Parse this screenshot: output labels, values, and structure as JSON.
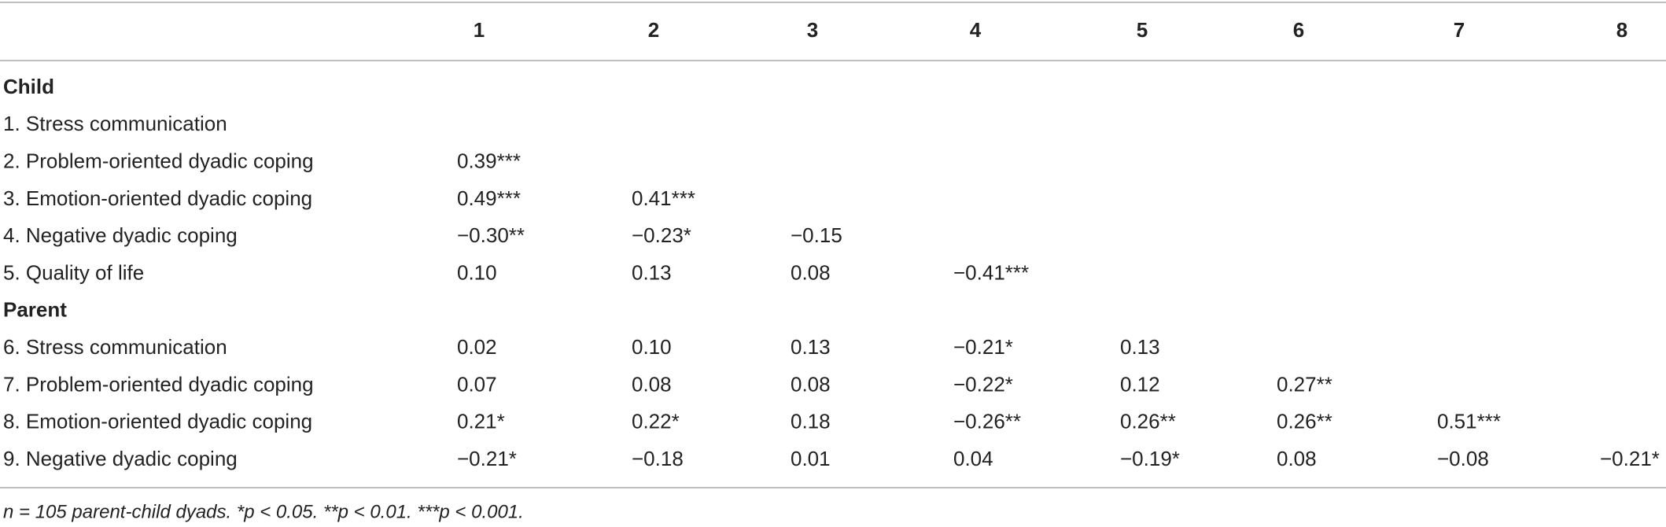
{
  "table": {
    "columns": [
      "1",
      "2",
      "3",
      "4",
      "5",
      "6",
      "7",
      "8"
    ],
    "sections": [
      {
        "title": "Child",
        "rows": [
          {
            "label": "1. Stress communication",
            "cells": []
          },
          {
            "label": "2. Problem-oriented dyadic coping",
            "cells": [
              "0.39***"
            ]
          },
          {
            "label": "3. Emotion-oriented dyadic coping",
            "cells": [
              "0.49***",
              "0.41***"
            ]
          },
          {
            "label": "4. Negative dyadic coping",
            "cells": [
              "−0.30**",
              "−0.23*",
              "−0.15"
            ]
          },
          {
            "label": "5. Quality of life",
            "cells": [
              "0.10",
              "0.13",
              "0.08",
              "−0.41***"
            ]
          }
        ]
      },
      {
        "title": "Parent",
        "rows": [
          {
            "label": "6. Stress communication",
            "cells": [
              "0.02",
              "0.10",
              "0.13",
              "−0.21*",
              "0.13"
            ]
          },
          {
            "label": "7. Problem-oriented dyadic coping",
            "cells": [
              "0.07",
              "0.08",
              "0.08",
              "−0.22*",
              "0.12",
              "0.27**"
            ]
          },
          {
            "label": "8. Emotion-oriented dyadic coping",
            "cells": [
              "0.21*",
              "0.22*",
              "0.18",
              "−0.26**",
              "0.26**",
              "0.26**",
              "0.51***"
            ]
          },
          {
            "label": "9. Negative dyadic coping",
            "cells": [
              "−0.21*",
              "−0.18",
              "0.01",
              "0.04",
              "−0.19*",
              "0.08",
              "−0.08",
              "−0.21*"
            ]
          }
        ]
      }
    ],
    "footnote": "n = 105 parent-child dyads. *p < 0.05. **p < 0.01. ***p < 0.001."
  }
}
